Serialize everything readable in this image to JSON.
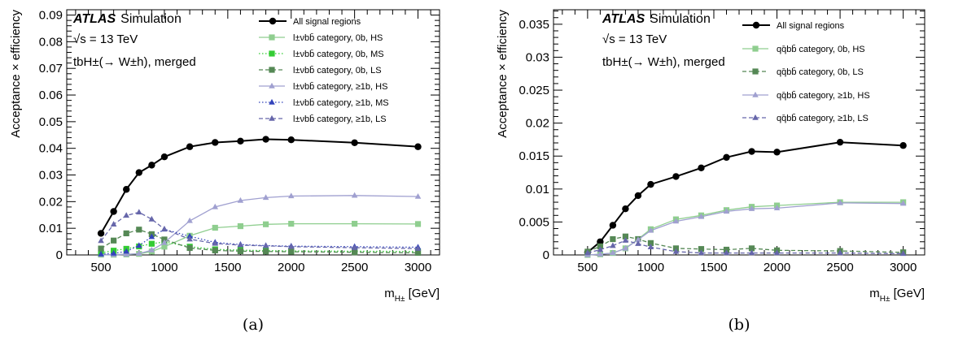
{
  "chart_data": [
    {
      "type": "line",
      "panel_label": "(a)",
      "experiment": "ATLAS",
      "experiment_suffix": "Simulation",
      "energy_text": "√s = 13 TeV",
      "process_text": "tbH±(→ W±h), merged",
      "xlabel": "m",
      "xlabel_sub": "H±",
      "xlabel_unit": " [GeV]",
      "ylabel": "Acceptance × efficiency",
      "xlim": [
        230,
        3170
      ],
      "ylim": [
        0,
        0.092
      ],
      "xticks": [
        500,
        1000,
        1500,
        2000,
        2500,
        3000
      ],
      "xtick_labels": [
        "500",
        "1000",
        "1500",
        "2000",
        "2500",
        "3000"
      ],
      "yticks": [
        0,
        0.01,
        0.02,
        0.03,
        0.04,
        0.05,
        0.06,
        0.07,
        0.08,
        0.09
      ],
      "ytick_labels": [
        "0",
        "0.01",
        "0.02",
        "0.03",
        "0.04",
        "0.05",
        "0.06",
        "0.07",
        "0.08",
        "0.09"
      ],
      "x": [
        500,
        600,
        700,
        800,
        900,
        1000,
        1200,
        1400,
        1600,
        1800,
        2000,
        2500,
        3000
      ],
      "series": [
        {
          "name": "All signal regions",
          "color": "#000000",
          "dash": "solid",
          "marker": "circle",
          "legend_style": "big",
          "values": [
            0.0081,
            0.0163,
            0.0246,
            0.0309,
            0.0337,
            0.0368,
            0.0406,
            0.0422,
            0.0427,
            0.0434,
            0.0432,
            0.0421,
            0.0406
          ]
        },
        {
          "name": "l±νbb̄ category, 0b, HS",
          "color": "#8fce8f",
          "dash": "solid",
          "marker": "square",
          "values": [
            0.0001,
            0.0001,
            0.0002,
            0.0004,
            0.0013,
            0.0031,
            0.0072,
            0.0102,
            0.0108,
            0.0115,
            0.0117,
            0.0117,
            0.0116
          ]
        },
        {
          "name": "l±νbb̄ category, 0b, MS",
          "color": "#33cc33",
          "dash": "dot",
          "marker": "square",
          "values": [
            0.0008,
            0.0016,
            0.0023,
            0.0032,
            0.0042,
            0.0049,
            0.0031,
            0.0021,
            0.0018,
            0.0016,
            0.0015,
            0.0014,
            0.0013
          ]
        },
        {
          "name": "l±νbb̄ category, 0b, LS",
          "color": "#558855",
          "dash": "dash",
          "marker": "square",
          "values": [
            0.0024,
            0.0054,
            0.0081,
            0.0095,
            0.0078,
            0.0058,
            0.0026,
            0.0017,
            0.0014,
            0.0013,
            0.0012,
            0.001,
            0.0008
          ]
        },
        {
          "name": "l±νbb̄ category, ≥1b, HS",
          "color": "#a0a0d0",
          "dash": "solid",
          "marker": "triangle",
          "values": [
            0.0001,
            0.0001,
            0.0002,
            0.0005,
            0.0018,
            0.0046,
            0.0128,
            0.018,
            0.0204,
            0.0215,
            0.0221,
            0.0223,
            0.0219
          ]
        },
        {
          "name": "l±νbb̄ category, ≥1b, MS",
          "color": "#3344bb",
          "dash": "dot",
          "marker": "triangle",
          "values": [
            0.0003,
            0.0006,
            0.0013,
            0.0035,
            0.0068,
            0.0096,
            0.007,
            0.0047,
            0.0039,
            0.0035,
            0.0033,
            0.0031,
            0.0029
          ]
        },
        {
          "name": "l±νbb̄ category, ≥1b, LS",
          "color": "#6666aa",
          "dash": "dash",
          "marker": "triangle",
          "values": [
            0.0053,
            0.0115,
            0.0148,
            0.016,
            0.0134,
            0.0097,
            0.0059,
            0.0043,
            0.0037,
            0.0034,
            0.0031,
            0.0027,
            0.0024
          ]
        }
      ]
    },
    {
      "type": "line",
      "panel_label": "(b)",
      "experiment": "ATLAS",
      "experiment_suffix": "Simulation",
      "energy_text": "√s = 13 TeV",
      "process_text": "tbH±(→ W±h), merged",
      "xlabel": "m",
      "xlabel_sub": "H±",
      "xlabel_unit": " [GeV]",
      "ylabel": "Acceptance × efficiency",
      "xlim": [
        230,
        3170
      ],
      "ylim": [
        0,
        0.0372
      ],
      "xticks": [
        500,
        1000,
        1500,
        2000,
        2500,
        3000
      ],
      "xtick_labels": [
        "500",
        "1000",
        "1500",
        "2000",
        "2500",
        "3000"
      ],
      "yticks": [
        0,
        0.005,
        0.01,
        0.015,
        0.02,
        0.025,
        0.03,
        0.035
      ],
      "ytick_labels": [
        "0",
        "0.005",
        "0.01",
        "0.015",
        "0.02",
        "0.025",
        "0.03",
        "0.035"
      ],
      "x": [
        500,
        600,
        700,
        800,
        900,
        1000,
        1200,
        1400,
        1600,
        1800,
        2000,
        2500,
        3000
      ],
      "series": [
        {
          "name": "All signal regions",
          "color": "#000000",
          "dash": "solid",
          "marker": "circle",
          "legend_style": "big",
          "values": [
            0.0004,
            0.002,
            0.0045,
            0.007,
            0.009,
            0.0107,
            0.0119,
            0.0132,
            0.0148,
            0.0157,
            0.0156,
            0.0171,
            0.0166
          ]
        },
        {
          "name": "qq̄bb̄ category, 0b, HS",
          "color": "#8fce8f",
          "dash": "solid",
          "marker": "square",
          "values": [
            0.0,
            0.0001,
            0.0003,
            0.001,
            0.0024,
            0.0039,
            0.0054,
            0.006,
            0.0068,
            0.0073,
            0.0075,
            0.008,
            0.008
          ]
        },
        {
          "name": "qq̄bb̄ category, 0b, LS",
          "color": "#558855",
          "dash": "dash",
          "marker": "square",
          "values": [
            0.0005,
            0.0013,
            0.0024,
            0.0028,
            0.0024,
            0.0018,
            0.001,
            0.0009,
            0.0008,
            0.001,
            0.0007,
            0.0006,
            0.0004
          ]
        },
        {
          "name": "qq̄bb̄ category, ≥1b, HS",
          "color": "#a0a0d0",
          "dash": "solid",
          "marker": "triangle",
          "values": [
            0.0,
            0.0001,
            0.0003,
            0.001,
            0.0023,
            0.0037,
            0.0051,
            0.0058,
            0.0066,
            0.007,
            0.0071,
            0.0079,
            0.0078
          ]
        },
        {
          "name": "qq̄bb̄ category, ≥1b, LS",
          "color": "#6666aa",
          "dash": "dash",
          "marker": "triangle",
          "values": [
            0.0003,
            0.0008,
            0.0014,
            0.0022,
            0.0017,
            0.0012,
            0.0005,
            0.0003,
            0.0003,
            0.0003,
            0.0003,
            0.0003,
            0.0002
          ]
        }
      ]
    }
  ]
}
